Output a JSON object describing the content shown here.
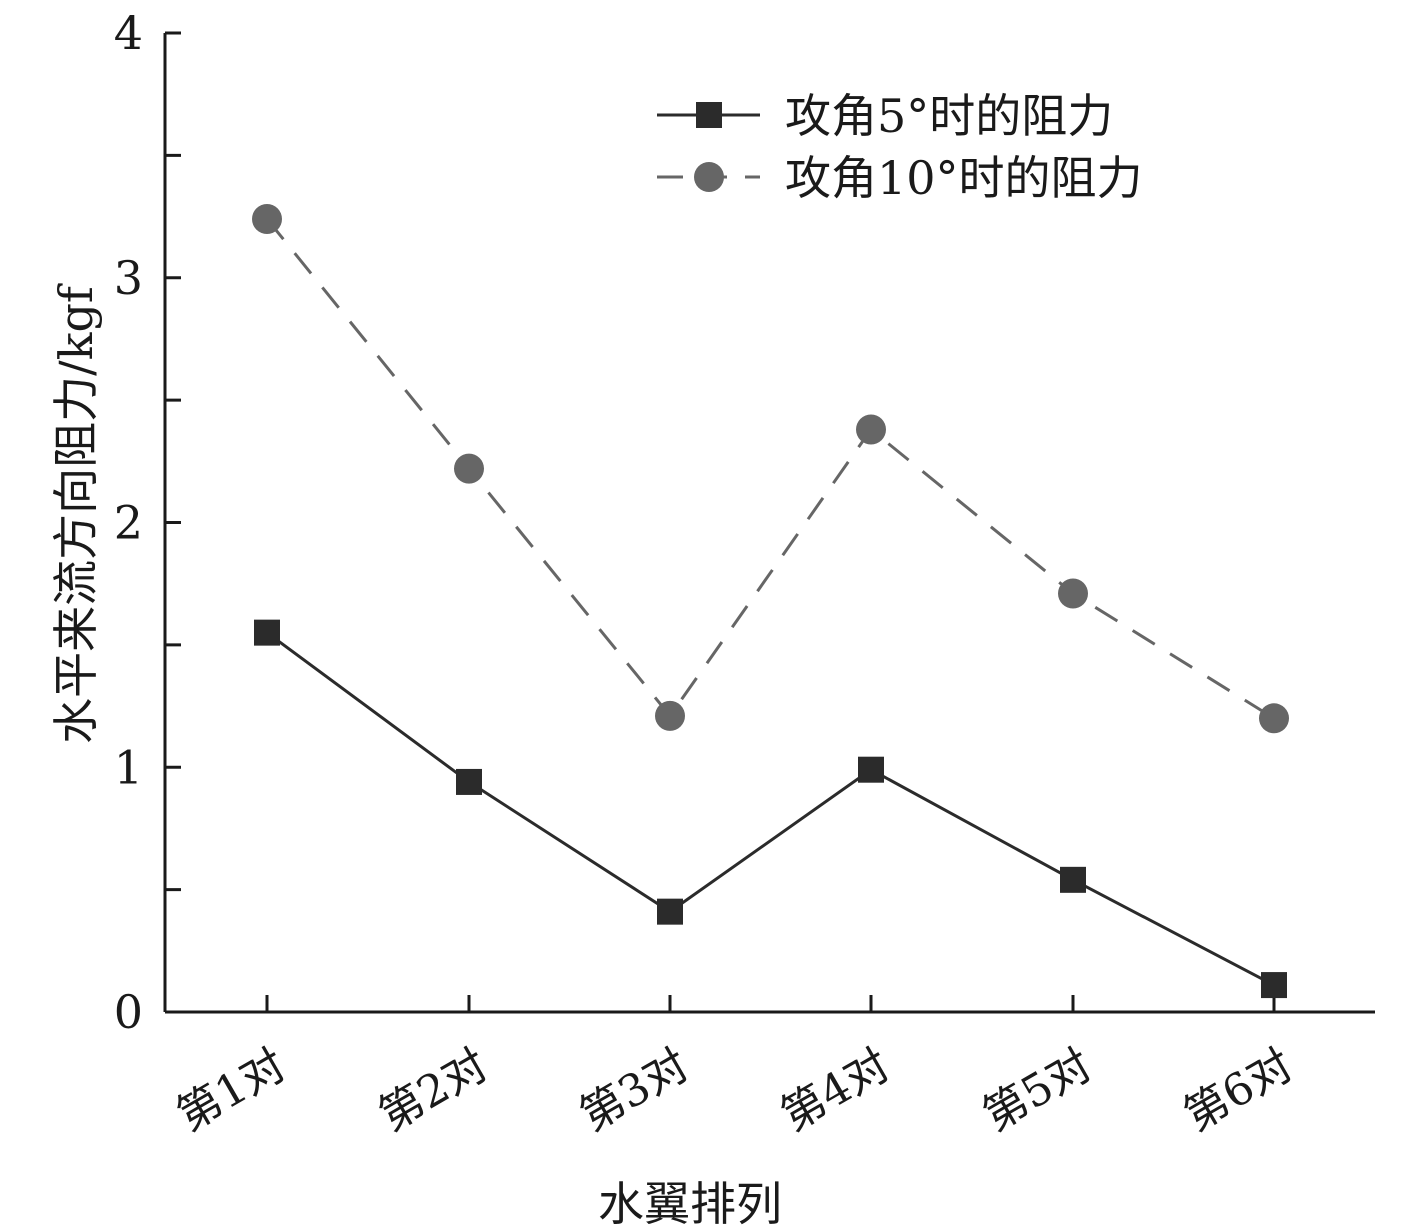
{
  "chart_data": {
    "type": "line",
    "title": "",
    "xlabel": "水翼排列",
    "ylabel": "水平来流方向阻力/kgf",
    "categories": [
      "第1对",
      "第2对",
      "第3对",
      "第4对",
      "第5对",
      "第6对"
    ],
    "ylim": [
      0,
      4
    ],
    "yticks": [
      "0",
      "1",
      "2",
      "3",
      "4"
    ],
    "grid": false,
    "legend_position": "top-right",
    "series": [
      {
        "name": "攻角5°时的阻力",
        "marker": "square",
        "line": "solid",
        "color": "#2b2b2b",
        "values": [
          1.55,
          0.94,
          0.41,
          0.99,
          0.54,
          0.11
        ]
      },
      {
        "name": "攻角10°时的阻力",
        "marker": "circle",
        "line": "dashed",
        "color": "#666666",
        "values": [
          3.24,
          2.22,
          1.21,
          2.38,
          1.71,
          1.2
        ]
      }
    ]
  }
}
